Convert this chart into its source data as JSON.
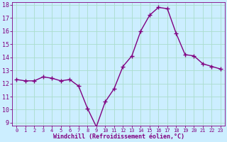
{
  "x": [
    0,
    1,
    2,
    3,
    4,
    5,
    6,
    7,
    8,
    9,
    10,
    11,
    12,
    13,
    14,
    15,
    16,
    17,
    18,
    19,
    20,
    21,
    22,
    23
  ],
  "y": [
    12.3,
    12.2,
    12.2,
    12.5,
    12.4,
    12.2,
    12.3,
    11.8,
    10.1,
    8.7,
    10.6,
    11.6,
    13.3,
    14.1,
    16.0,
    17.2,
    17.8,
    17.7,
    15.8,
    14.2,
    14.1,
    13.5,
    13.3,
    13.1
  ],
  "line_color": "#800080",
  "marker": "+",
  "marker_size": 4,
  "bg_color": "#cceeff",
  "grid_color": "#aaddcc",
  "xlabel": "Windchill (Refroidissement éolien,°C)",
  "xlabel_color": "#800080",
  "tick_color": "#800080",
  "ylim": [
    9,
    18
  ],
  "xlim": [
    -0.5,
    23.5
  ],
  "yticks": [
    9,
    10,
    11,
    12,
    13,
    14,
    15,
    16,
    17,
    18
  ],
  "xticks": [
    0,
    1,
    2,
    3,
    4,
    5,
    6,
    7,
    8,
    9,
    10,
    11,
    12,
    13,
    14,
    15,
    16,
    17,
    18,
    19,
    20,
    21,
    22,
    23
  ],
  "line_width": 1.0,
  "ytick_fontsize": 6,
  "xtick_fontsize": 5,
  "xlabel_fontsize": 6
}
